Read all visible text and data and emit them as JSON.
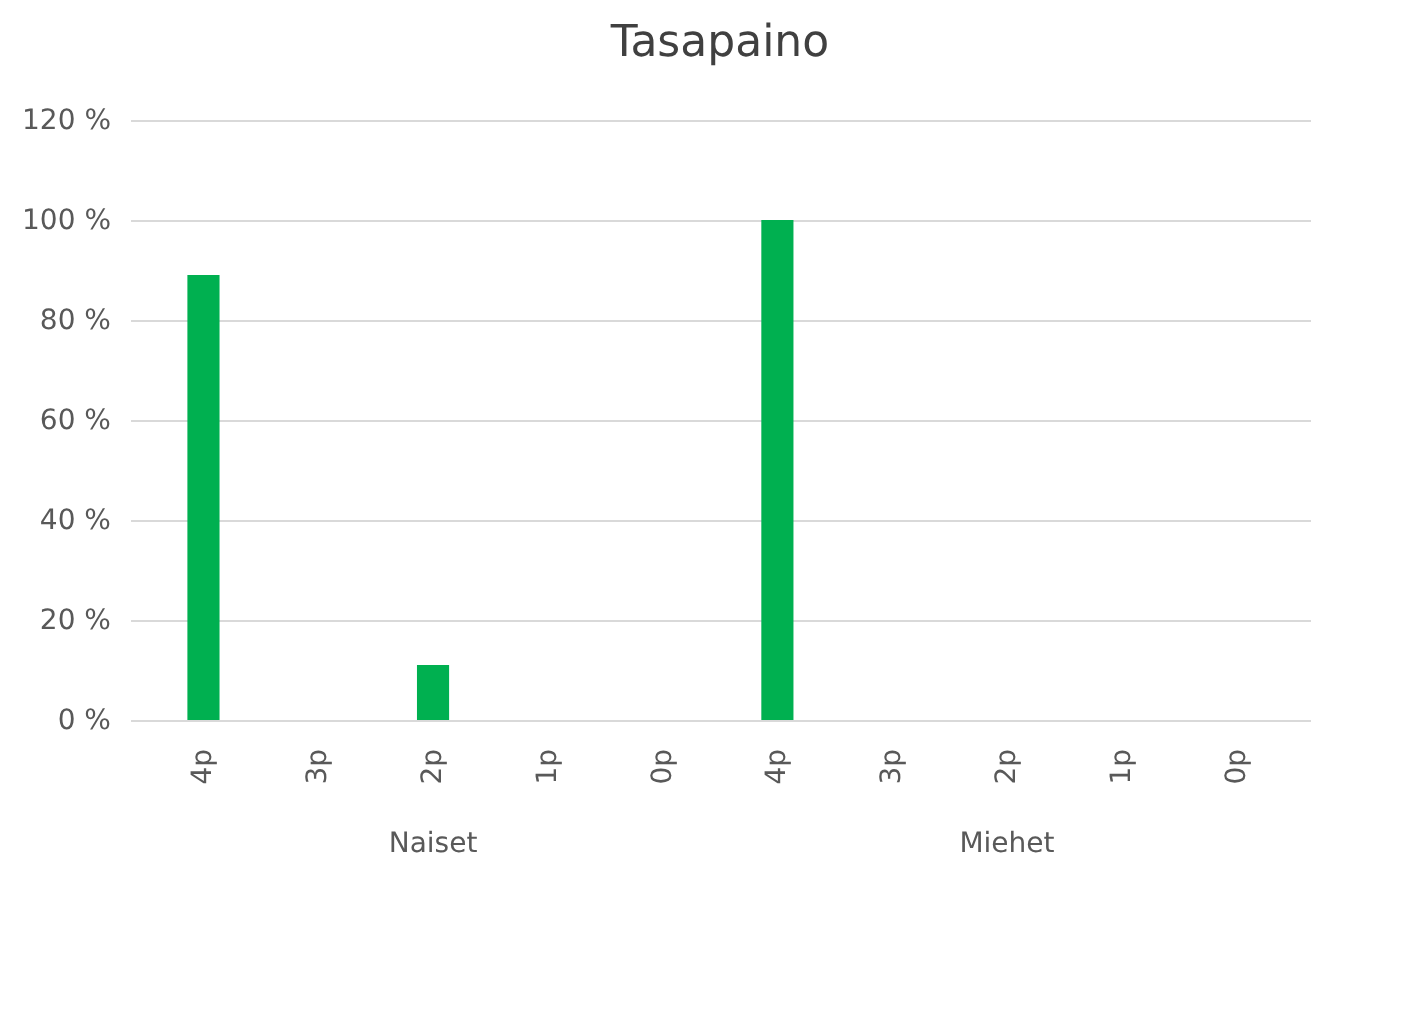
{
  "chart_data": {
    "type": "bar",
    "title": "Tasapaino",
    "categories": [
      "4p",
      "3p",
      "2p",
      "1p",
      "0p",
      "4p",
      "3p",
      "2p",
      "1p",
      "0p"
    ],
    "values": [
      89,
      0,
      11,
      0,
      0,
      100,
      0,
      0,
      0,
      0
    ],
    "color": "#00b050",
    "ylim": [
      0,
      120
    ],
    "yticks": [
      {
        "value": 0,
        "label": "0 %"
      },
      {
        "value": 20,
        "label": "20 %"
      },
      {
        "value": 40,
        "label": "40 %"
      },
      {
        "value": 60,
        "label": "60 %"
      },
      {
        "value": 80,
        "label": "80 %"
      },
      {
        "value": 100,
        "label": "100 %"
      },
      {
        "value": 120,
        "label": "120 %"
      }
    ],
    "grid": "y",
    "annotations": [
      "Naiset",
      "Miehet"
    ]
  }
}
